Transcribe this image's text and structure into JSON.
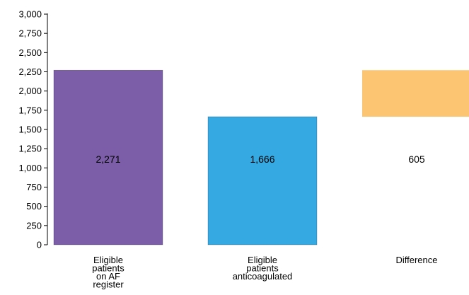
{
  "chart_data": {
    "type": "bar",
    "subtype": "waterfall",
    "title": "",
    "xlabel": "",
    "ylabel": "",
    "ylim": [
      0,
      3000
    ],
    "yticks": [
      0,
      250,
      500,
      750,
      1000,
      1250,
      1500,
      1750,
      2000,
      2250,
      2500,
      2750,
      3000
    ],
    "ytick_labels": [
      "0",
      "250",
      "500",
      "750",
      "1,000",
      "1,250",
      "1,500",
      "1,750",
      "2,000",
      "2,250",
      "2,500",
      "2,750",
      "3,000"
    ],
    "grid": false,
    "legend": "none",
    "bars": [
      {
        "category_lines": [
          "Eligible",
          "patients",
          "on AF",
          "register"
        ],
        "base": 0,
        "top": 2271,
        "value": 2271,
        "label": "2,271",
        "color": "#7b5ea7"
      },
      {
        "category_lines": [
          "Eligible",
          "patients",
          "anticoagulated"
        ],
        "base": 0,
        "top": 1666,
        "value": 1666,
        "label": "1,666",
        "color": "#35a9e1"
      },
      {
        "category_lines": [
          "Difference"
        ],
        "base": 1666,
        "top": 2271,
        "value": 605,
        "label": "605",
        "color": "#fbc571"
      }
    ]
  }
}
